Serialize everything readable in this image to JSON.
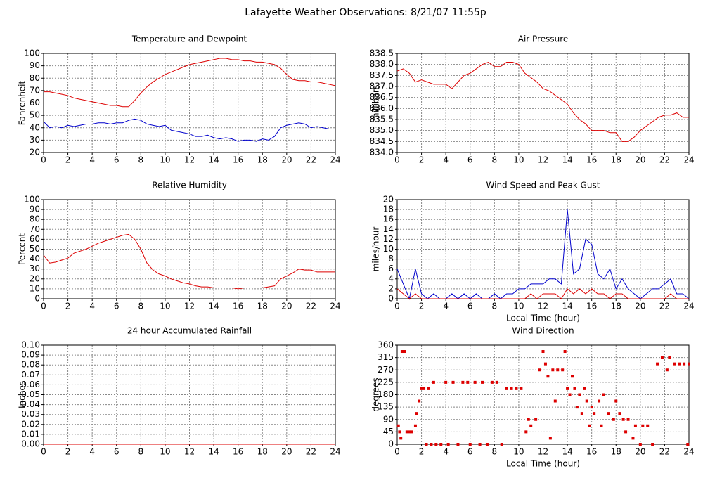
{
  "title": "Lafayette Weather Observations: 8/21/07 11:55p",
  "chart_data": [
    {
      "type": "line",
      "title": "Temperature and Dewpoint",
      "ylabel": "Fahrenheit",
      "x": [
        0,
        0.5,
        1,
        1.5,
        2,
        2.5,
        3,
        3.5,
        4,
        4.5,
        5,
        5.5,
        6,
        6.5,
        7,
        7.5,
        8,
        8.5,
        9,
        9.5,
        10,
        10.5,
        11,
        11.5,
        12,
        12.5,
        13,
        13.5,
        14,
        14.5,
        15,
        15.5,
        16,
        16.5,
        17,
        17.5,
        18,
        18.5,
        19,
        19.5,
        20,
        20.5,
        21,
        21.5,
        22,
        22.5,
        23,
        23.5,
        24
      ],
      "series": [
        {
          "color": "#dd0000",
          "values": [
            69,
            69,
            68,
            67,
            66,
            64,
            63,
            62,
            61,
            60,
            59,
            58,
            58,
            57,
            57,
            62,
            68,
            73,
            77,
            80,
            83,
            85,
            87,
            89,
            91,
            92,
            93,
            94,
            95,
            96,
            96,
            95,
            95,
            94,
            94,
            93,
            93,
            92,
            91,
            88,
            83,
            79,
            78,
            78,
            77,
            77,
            76,
            75,
            74
          ]
        },
        {
          "color": "#0000cc",
          "values": [
            45,
            40,
            41,
            40,
            42,
            41,
            42,
            43,
            43,
            44,
            44,
            43,
            44,
            44,
            46,
            47,
            46,
            43,
            42,
            41,
            42,
            38,
            37,
            36,
            35,
            33,
            33,
            34,
            32,
            31,
            32,
            31,
            29,
            30,
            30,
            29,
            31,
            30,
            33,
            40,
            42,
            43,
            44,
            43,
            40,
            41,
            40,
            39,
            39
          ]
        }
      ],
      "xlim": [
        0,
        24
      ],
      "ylim": [
        20,
        100
      ],
      "xticks": [
        0,
        2,
        4,
        6,
        8,
        10,
        12,
        14,
        16,
        18,
        20,
        22,
        24
      ],
      "yticks": [
        20,
        30,
        40,
        50,
        60,
        70,
        80,
        90,
        100
      ],
      "grid": true
    },
    {
      "type": "line",
      "title": "Air Pressure",
      "ylabel": "millibars",
      "x": [
        0,
        0.5,
        1,
        1.5,
        2,
        2.5,
        3,
        3.5,
        4,
        4.5,
        5,
        5.5,
        6,
        6.5,
        7,
        7.5,
        8,
        8.5,
        9,
        9.5,
        10,
        10.5,
        11,
        11.5,
        12,
        12.5,
        13,
        13.5,
        14,
        14.5,
        15,
        15.5,
        16,
        16.5,
        17,
        17.5,
        18,
        18.5,
        19,
        19.5,
        20,
        20.5,
        21,
        21.5,
        22,
        22.5,
        23,
        23.5,
        24
      ],
      "series": [
        {
          "color": "#dd0000",
          "values": [
            837.7,
            837.8,
            837.6,
            837.2,
            837.3,
            837.2,
            837.1,
            837.1,
            837.1,
            836.9,
            837.2,
            837.5,
            837.6,
            837.8,
            838.0,
            838.1,
            837.9,
            837.9,
            838.1,
            838.1,
            838.0,
            837.6,
            837.4,
            837.2,
            836.9,
            836.8,
            836.6,
            836.4,
            836.2,
            835.8,
            835.5,
            835.3,
            835.0,
            835.0,
            835.0,
            834.9,
            834.9,
            834.5,
            834.5,
            834.7,
            835.0,
            835.2,
            835.4,
            835.6,
            835.7,
            835.7,
            835.8,
            835.6,
            835.6
          ]
        }
      ],
      "xlim": [
        0,
        24
      ],
      "ylim": [
        834,
        838.5
      ],
      "xticks": [
        0,
        2,
        4,
        6,
        8,
        10,
        12,
        14,
        16,
        18,
        20,
        22,
        24
      ],
      "yticks": [
        {
          "value": 834,
          "label": "834.0"
        },
        834.5,
        {
          "value": 835,
          "label": "835.0"
        },
        835.5,
        {
          "value": 836,
          "label": "836.0"
        },
        836.5,
        {
          "value": 837,
          "label": "837.0"
        },
        837.5,
        {
          "value": 838,
          "label": "838.0"
        },
        838.5
      ],
      "grid": true
    },
    {
      "type": "line",
      "title": "Relative Humidity",
      "ylabel": "Percent",
      "x": [
        0,
        0.5,
        1,
        1.5,
        2,
        2.5,
        3,
        3.5,
        4,
        4.5,
        5,
        5.5,
        6,
        6.5,
        7,
        7.5,
        8,
        8.5,
        9,
        9.5,
        10,
        10.5,
        11,
        11.5,
        12,
        12.5,
        13,
        13.5,
        14,
        14.5,
        15,
        15.5,
        16,
        16.5,
        17,
        17.5,
        18,
        18.5,
        19,
        19.5,
        20,
        20.5,
        21,
        21.5,
        22,
        22.5,
        23,
        23.5,
        24
      ],
      "series": [
        {
          "color": "#dd0000",
          "values": [
            44,
            36,
            37,
            39,
            41,
            46,
            48,
            50,
            53,
            56,
            58,
            60,
            62,
            64,
            65,
            60,
            50,
            36,
            29,
            25,
            23,
            20,
            18,
            16,
            15,
            13,
            12,
            12,
            11,
            11,
            11,
            11,
            10,
            11,
            11,
            11,
            11,
            12,
            13,
            20,
            23,
            26,
            30,
            29,
            29,
            27,
            27,
            27,
            27
          ]
        }
      ],
      "xlim": [
        0,
        24
      ],
      "ylim": [
        0,
        100
      ],
      "xticks": [
        0,
        2,
        4,
        6,
        8,
        10,
        12,
        14,
        16,
        18,
        20,
        22,
        24
      ],
      "yticks": [
        0,
        10,
        20,
        30,
        40,
        50,
        60,
        70,
        80,
        90,
        100
      ],
      "grid": true
    },
    {
      "type": "line",
      "title": "Wind Speed and Peak Gust",
      "ylabel": "miles/hour",
      "xlabel": "Local Time (hour)",
      "x": [
        0,
        0.5,
        1,
        1.5,
        2,
        2.5,
        3,
        3.5,
        4,
        4.5,
        5,
        5.5,
        6,
        6.5,
        7,
        7.5,
        8,
        8.5,
        9,
        9.5,
        10,
        10.5,
        11,
        11.5,
        12,
        12.5,
        13,
        13.5,
        14,
        14.5,
        15,
        15.5,
        16,
        16.5,
        17,
        17.5,
        18,
        18.5,
        19,
        19.5,
        20,
        20.5,
        21,
        21.5,
        22,
        22.5,
        23,
        23.5,
        24
      ],
      "series": [
        {
          "color": "#0000cc",
          "values": [
            6,
            3,
            0,
            6,
            1,
            0,
            1,
            0,
            0,
            1,
            0,
            1,
            0,
            1,
            0,
            0,
            1,
            0,
            1,
            1,
            2,
            2,
            3,
            3,
            3,
            4,
            4,
            3,
            18,
            5,
            6,
            12,
            11,
            5,
            4,
            6,
            2,
            4,
            2,
            1,
            0,
            1,
            2,
            2,
            3,
            4,
            1,
            1,
            0
          ]
        },
        {
          "color": "#dd0000",
          "values": [
            2,
            1,
            0,
            1,
            0,
            0,
            0,
            0,
            0,
            0,
            0,
            0,
            0,
            0,
            0,
            0,
            0,
            0,
            0,
            0,
            0,
            0,
            1,
            0,
            1,
            1,
            1,
            0,
            2,
            1,
            2,
            1,
            2,
            1,
            1,
            0,
            1,
            1,
            0,
            0,
            0,
            0,
            0,
            0,
            0,
            1,
            0,
            0,
            0
          ]
        }
      ],
      "xlim": [
        0,
        24
      ],
      "ylim": [
        0,
        20
      ],
      "xticks": [
        0,
        2,
        4,
        6,
        8,
        10,
        12,
        14,
        16,
        18,
        20,
        22,
        24
      ],
      "yticks": [
        0,
        2,
        4,
        6,
        8,
        10,
        12,
        14,
        16,
        18,
        20
      ],
      "grid": true
    },
    {
      "type": "line",
      "title": "24 hour Accumulated Rainfall",
      "ylabel": "Inches",
      "x": [
        0,
        24
      ],
      "series": [
        {
          "color": "#dd0000",
          "values": [
            0,
            0
          ]
        }
      ],
      "xlim": [
        0,
        24
      ],
      "ylim": [
        0,
        0.1
      ],
      "xticks": [
        0,
        2,
        4,
        6,
        8,
        10,
        12,
        14,
        16,
        18,
        20,
        22,
        24
      ],
      "yticks": [
        {
          "value": 0,
          "label": "0.00"
        },
        0.01,
        0.02,
        0.03,
        0.04,
        0.05,
        0.06,
        0.07,
        0.08,
        0.09,
        {
          "value": 0.1,
          "label": "0.10"
        }
      ],
      "grid": true
    },
    {
      "type": "scatter",
      "title": "Wind Direction",
      "ylabel": "degrees",
      "xlabel": "Local Time (hour)",
      "x": [
        0.1,
        0.2,
        0.3,
        0.4,
        0.6,
        0.8,
        1,
        1.2,
        1.5,
        1.6,
        1.8,
        2,
        2.2,
        2.4,
        2.6,
        2.8,
        3,
        3.2,
        3.6,
        4,
        4.2,
        4.6,
        5,
        5.4,
        5.8,
        6,
        6.4,
        6.8,
        7,
        7.4,
        7.8,
        8.2,
        8.6,
        9,
        9.4,
        9.8,
        10.2,
        10.6,
        10.8,
        11,
        11.4,
        11.7,
        12,
        12.2,
        12.4,
        12.6,
        12.8,
        13,
        13.2,
        13.6,
        13.8,
        14,
        14.2,
        14.4,
        14.6,
        14.8,
        15,
        15.2,
        15.4,
        15.6,
        15.8,
        16,
        16.2,
        16.6,
        16.8,
        17,
        17.4,
        17.8,
        18,
        18.3,
        18.6,
        18.8,
        19,
        19.4,
        19.6,
        20,
        20.2,
        20.6,
        21,
        21.4,
        21.8,
        22.2,
        22.4,
        22.8,
        23.2,
        23.6,
        23.9,
        24
      ],
      "series": [
        {
          "color": "#dd0000",
          "values": [
            67,
            45,
            22,
            337,
            337,
            45,
            45,
            45,
            67,
            112,
            157,
            202,
            202,
            0,
            202,
            0,
            225,
            0,
            0,
            225,
            0,
            225,
            0,
            225,
            225,
            0,
            225,
            0,
            225,
            0,
            225,
            225,
            0,
            202,
            202,
            202,
            202,
            45,
            90,
            67,
            90,
            270,
            337,
            292,
            247,
            22,
            270,
            157,
            270,
            270,
            337,
            202,
            180,
            247,
            202,
            135,
            180,
            112,
            202,
            157,
            67,
            135,
            112,
            157,
            67,
            180,
            112,
            90,
            157,
            112,
            90,
            45,
            90,
            22,
            67,
            0,
            67,
            67,
            0,
            292,
            315,
            270,
            315,
            292,
            292,
            292,
            0,
            292
          ]
        }
      ],
      "xlim": [
        0,
        24
      ],
      "ylim": [
        0,
        360
      ],
      "xticks": [
        0,
        2,
        4,
        6,
        8,
        10,
        12,
        14,
        16,
        18,
        20,
        22,
        24
      ],
      "yticks": [
        0,
        45,
        90,
        135,
        180,
        225,
        270,
        315,
        360
      ],
      "grid": true
    }
  ]
}
